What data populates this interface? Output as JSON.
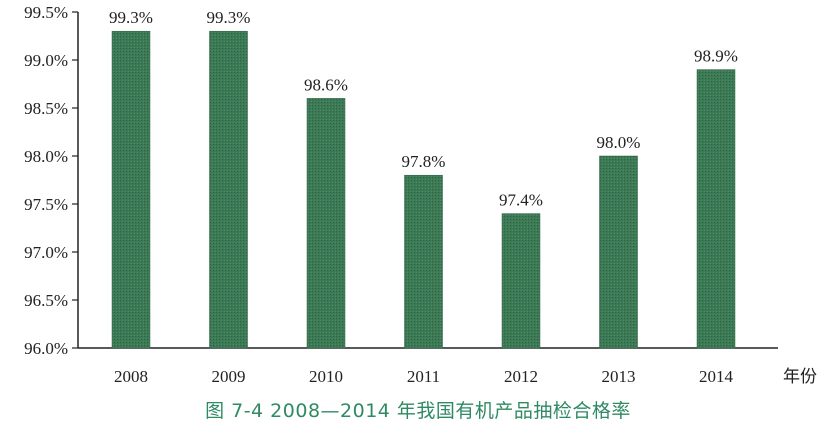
{
  "caption": "图 7-4   2008—2014 年我国有机产品抽检合格率",
  "colors": {
    "bar": "#3c7a55",
    "bar_dark": "#2d6244",
    "axis": "#222222",
    "caption": "#2f8a62"
  },
  "chart_data": {
    "type": "bar",
    "title": "",
    "xlabel": "年份",
    "ylabel": "",
    "categories": [
      "2008",
      "2009",
      "2010",
      "2011",
      "2012",
      "2013",
      "2014"
    ],
    "values": [
      99.3,
      99.3,
      98.6,
      97.8,
      97.4,
      98.0,
      98.9
    ],
    "data_labels": [
      "99.3%",
      "99.3%",
      "98.6%",
      "97.8%",
      "97.4%",
      "98.0%",
      "98.9%"
    ],
    "ylim": [
      96.0,
      99.5
    ],
    "yticks": [
      96.0,
      96.5,
      97.0,
      97.5,
      98.0,
      98.5,
      99.0,
      99.5
    ],
    "ytick_labels": [
      "96.0%",
      "96.5%",
      "97.0%",
      "97.5%",
      "98.0%",
      "98.5%",
      "99.0%",
      "99.5%"
    ],
    "grid": false,
    "legend": "none"
  }
}
